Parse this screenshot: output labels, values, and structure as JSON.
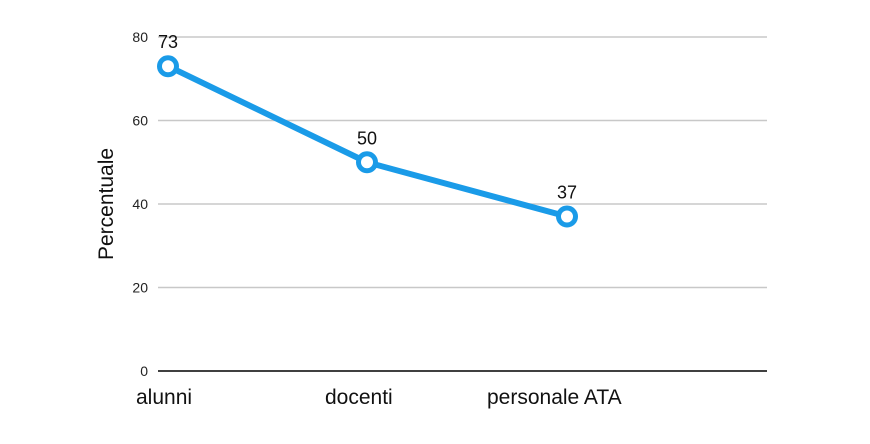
{
  "chart_data": {
    "type": "line",
    "categories": [
      "alunni",
      "docenti",
      "personale ATA"
    ],
    "series": [
      {
        "values": [
          73,
          50,
          37
        ],
        "color": "#1a9be8"
      }
    ],
    "data_labels": [
      "73",
      "50",
      "37"
    ],
    "ylabel": "Percentuale",
    "ylim": [
      0,
      80
    ],
    "yticks": [
      0,
      20,
      40,
      60,
      80
    ],
    "grid": true,
    "legend": "none",
    "gridline_color": "#c8c8c8",
    "axis_color": "#000000"
  }
}
